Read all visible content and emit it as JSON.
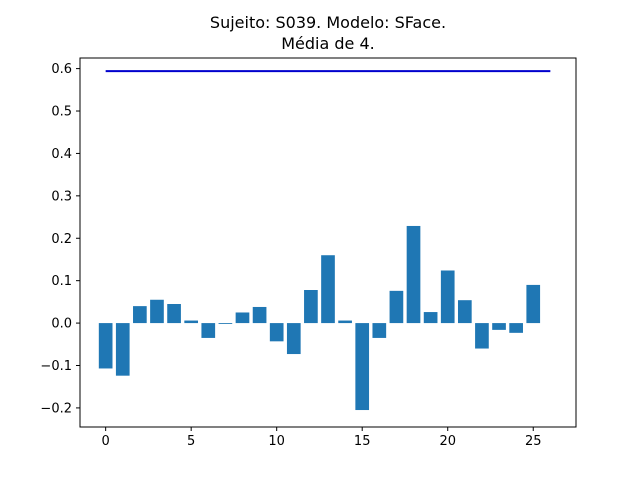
{
  "chart_data": {
    "type": "bar",
    "title": "Sujeito: S039. Modelo: SFace.",
    "subtitle": "Média de 4.",
    "xlabel": "",
    "ylabel": "",
    "xlim": [
      -1.5,
      27.5
    ],
    "ylim": [
      -0.245,
      0.625
    ],
    "x_ticks": [
      0,
      5,
      10,
      15,
      20,
      25
    ],
    "x_tick_labels": [
      "0",
      "5",
      "10",
      "15",
      "20",
      "25"
    ],
    "y_ticks": [
      -0.2,
      -0.1,
      0.0,
      0.1,
      0.2,
      0.3,
      0.4,
      0.5,
      0.6
    ],
    "y_tick_labels": [
      "−0.2",
      "−0.1",
      "0.0",
      "0.1",
      "0.2",
      "0.3",
      "0.4",
      "0.5",
      "0.6"
    ],
    "grid": false,
    "legend": "none",
    "bar_color": "#1f77b4",
    "line_color": "#0000cd",
    "x": [
      0,
      1,
      2,
      3,
      4,
      5,
      6,
      7,
      8,
      9,
      10,
      11,
      12,
      13,
      14,
      15,
      16,
      17,
      18,
      19,
      20,
      21,
      22,
      23,
      24,
      25
    ],
    "values": [
      -0.107,
      -0.124,
      0.04,
      0.055,
      0.045,
      0.006,
      -0.035,
      -0.002,
      0.025,
      0.038,
      -0.043,
      -0.073,
      0.078,
      0.16,
      0.006,
      -0.205,
      -0.035,
      0.076,
      0.229,
      0.026,
      0.124,
      0.054,
      -0.06,
      -0.016,
      -0.023,
      0.09
    ],
    "threshold_line": {
      "y": 0.594,
      "x_start": 0,
      "x_end": 26
    }
  }
}
